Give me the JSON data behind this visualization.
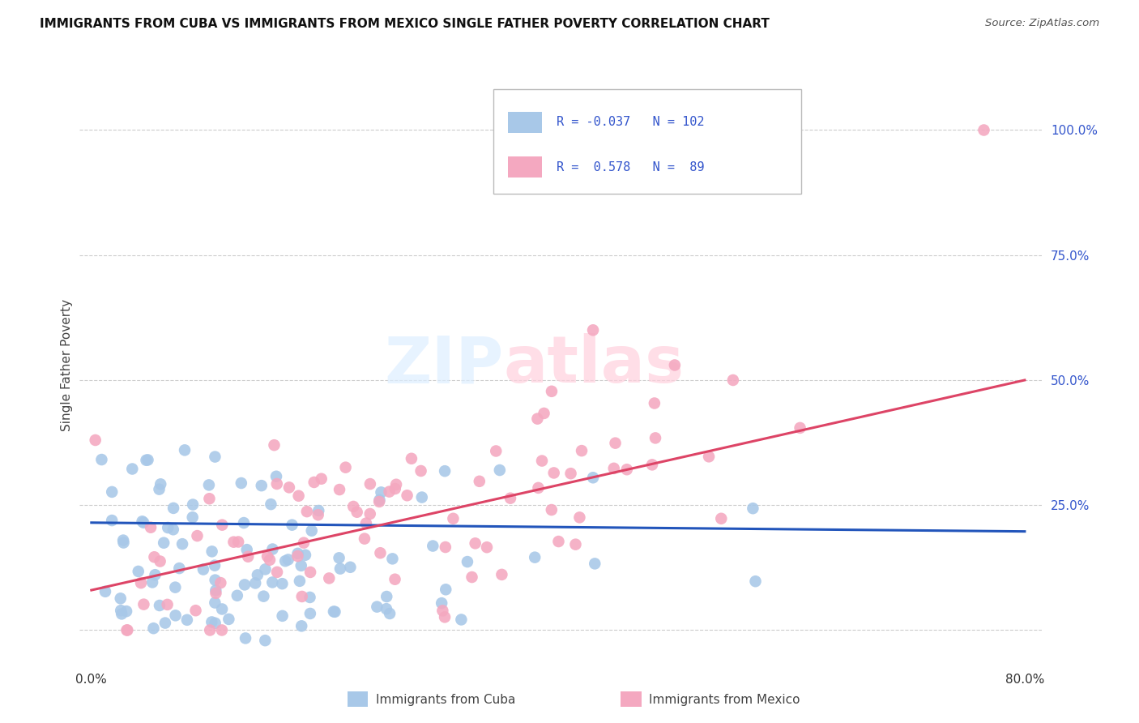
{
  "title": "IMMIGRANTS FROM CUBA VS IMMIGRANTS FROM MEXICO SINGLE FATHER POVERTY CORRELATION CHART",
  "source": "Source: ZipAtlas.com",
  "ylabel": "Single Father Poverty",
  "legend_labels": [
    "Immigrants from Cuba",
    "Immigrants from Mexico"
  ],
  "legend_r": [
    "-0.037",
    "0.578"
  ],
  "legend_n": [
    "102",
    "89"
  ],
  "cuba_color": "#a8c8e8",
  "mexico_color": "#f4a8c0",
  "cuba_line_color": "#2255bb",
  "mexico_line_color": "#dd4466",
  "background_color": "#ffffff",
  "watermark_zip": "ZIP",
  "watermark_atlas": "atlas",
  "xlim": [
    0.0,
    0.8
  ],
  "ylim": [
    -0.07,
    1.13
  ],
  "xticks": [
    0.0,
    0.2,
    0.4,
    0.6,
    0.8
  ],
  "xticklabels": [
    "0.0%",
    "",
    "",
    "",
    "80.0%"
  ],
  "right_yticks": [
    0.0,
    0.25,
    0.5,
    0.75,
    1.0
  ],
  "right_yticklabels": [
    "",
    "25.0%",
    "50.0%",
    "75.0%",
    "100.0%"
  ]
}
